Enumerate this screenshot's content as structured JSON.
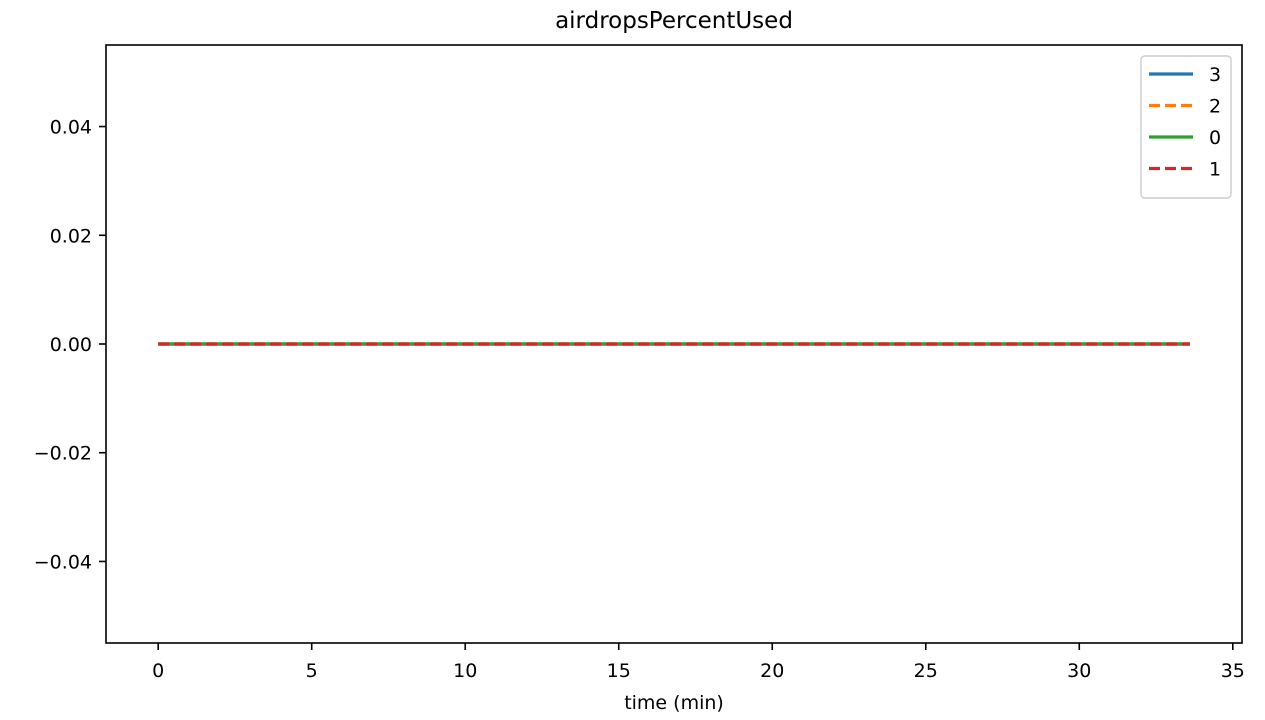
{
  "chart_data": {
    "type": "line",
    "title": "airdropsPercentUsed",
    "xlabel": "time (min)",
    "ylabel": "",
    "xlim": [
      -1.7,
      35.3
    ],
    "ylim": [
      -0.055,
      0.055
    ],
    "x_ticks": [
      0,
      5,
      10,
      15,
      20,
      25,
      30,
      35
    ],
    "x_tick_labels": [
      "0",
      "5",
      "10",
      "15",
      "20",
      "25",
      "30",
      "35"
    ],
    "y_ticks": [
      0.04,
      0.02,
      0.0,
      -0.02,
      -0.04
    ],
    "y_tick_labels": [
      "0.04",
      "0.02",
      "0.00",
      "−0.02",
      "−0.04"
    ],
    "grid": false,
    "legend_position": "top-right",
    "series": [
      {
        "name": "3",
        "color": "#1f77b4",
        "style": "solid",
        "x": [
          0,
          33.6
        ],
        "y": [
          0,
          0
        ]
      },
      {
        "name": "2",
        "color": "#ff7f0e",
        "style": "dashed",
        "x": [
          0,
          33.6
        ],
        "y": [
          0,
          0
        ]
      },
      {
        "name": "0",
        "color": "#2ca02c",
        "style": "solid",
        "x": [
          0,
          33.6
        ],
        "y": [
          0,
          0
        ]
      },
      {
        "name": "1",
        "color": "#d62728",
        "style": "dashed",
        "x": [
          0,
          33.6
        ],
        "y": [
          0,
          0
        ]
      }
    ]
  }
}
